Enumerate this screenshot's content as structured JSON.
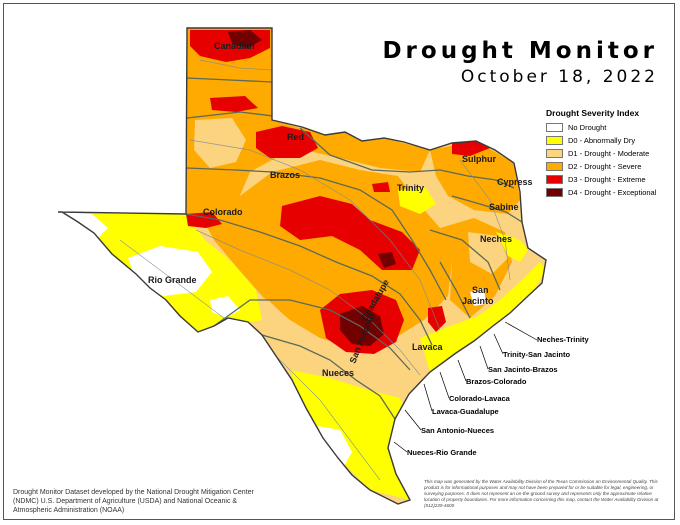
{
  "title": "Drought Monitor",
  "date": "October 18, 2022",
  "legend": {
    "title": "Drought Severity Index",
    "items": [
      {
        "label": "No Drought",
        "color": "#ffffff"
      },
      {
        "label": "D0 - Abnormally Dry",
        "color": "#ffff00"
      },
      {
        "label": "D1 - Drought - Moderate",
        "color": "#fcd37f"
      },
      {
        "label": "D2 - Drought - Severe",
        "color": "#ffaa00"
      },
      {
        "label": "D3 - Drought - Extreme",
        "color": "#e60000"
      },
      {
        "label": "D4 - Drought - Exceptional",
        "color": "#730000"
      }
    ]
  },
  "basins": {
    "canadian": "Canadian",
    "red": "Red",
    "brazos": "Brazos",
    "colorado": "Colorado",
    "rio_grande": "Rio Grande",
    "trinity": "Trinity",
    "sulphur": "Sulphur",
    "cypress": "Cypress",
    "sabine": "Sabine",
    "neches": "Neches",
    "san_jacinto": "San Jacinto",
    "guadalupe": "Guadalupe",
    "san_antonio": "San Antonio",
    "lavaca": "Lavaca",
    "nueces": "Nueces"
  },
  "coastal_basins": [
    "Neches-Trinity",
    "Trinity-San Jacinto",
    "San Jacinto-Brazos",
    "Brazos-Colorado",
    "Colorado-Lavaca",
    "Lavaca-Guadalupe",
    "San Antonio-Nueces",
    "Nueces-Rio Grande"
  ],
  "credit": "Drought Monitor Dataset developed by the National Drought Mitigation Center (NDMC) U.S. Department of Agriculture (USDA) and National Oceanic & Atmospheric Administration (NOAA)",
  "disclaimer": "This map was generated by the Water Availability Division of the Texas Commission on Environmental Quality. This product is for informational purposes and may not have been prepared for or be suitable for legal, engineering, or surveying purposes. It does not represent an on-the-ground survey and represents only the approximate relative location of property boundaries. For more information concerning this map, contact the Water Availability Division at (512)239-4600"
}
